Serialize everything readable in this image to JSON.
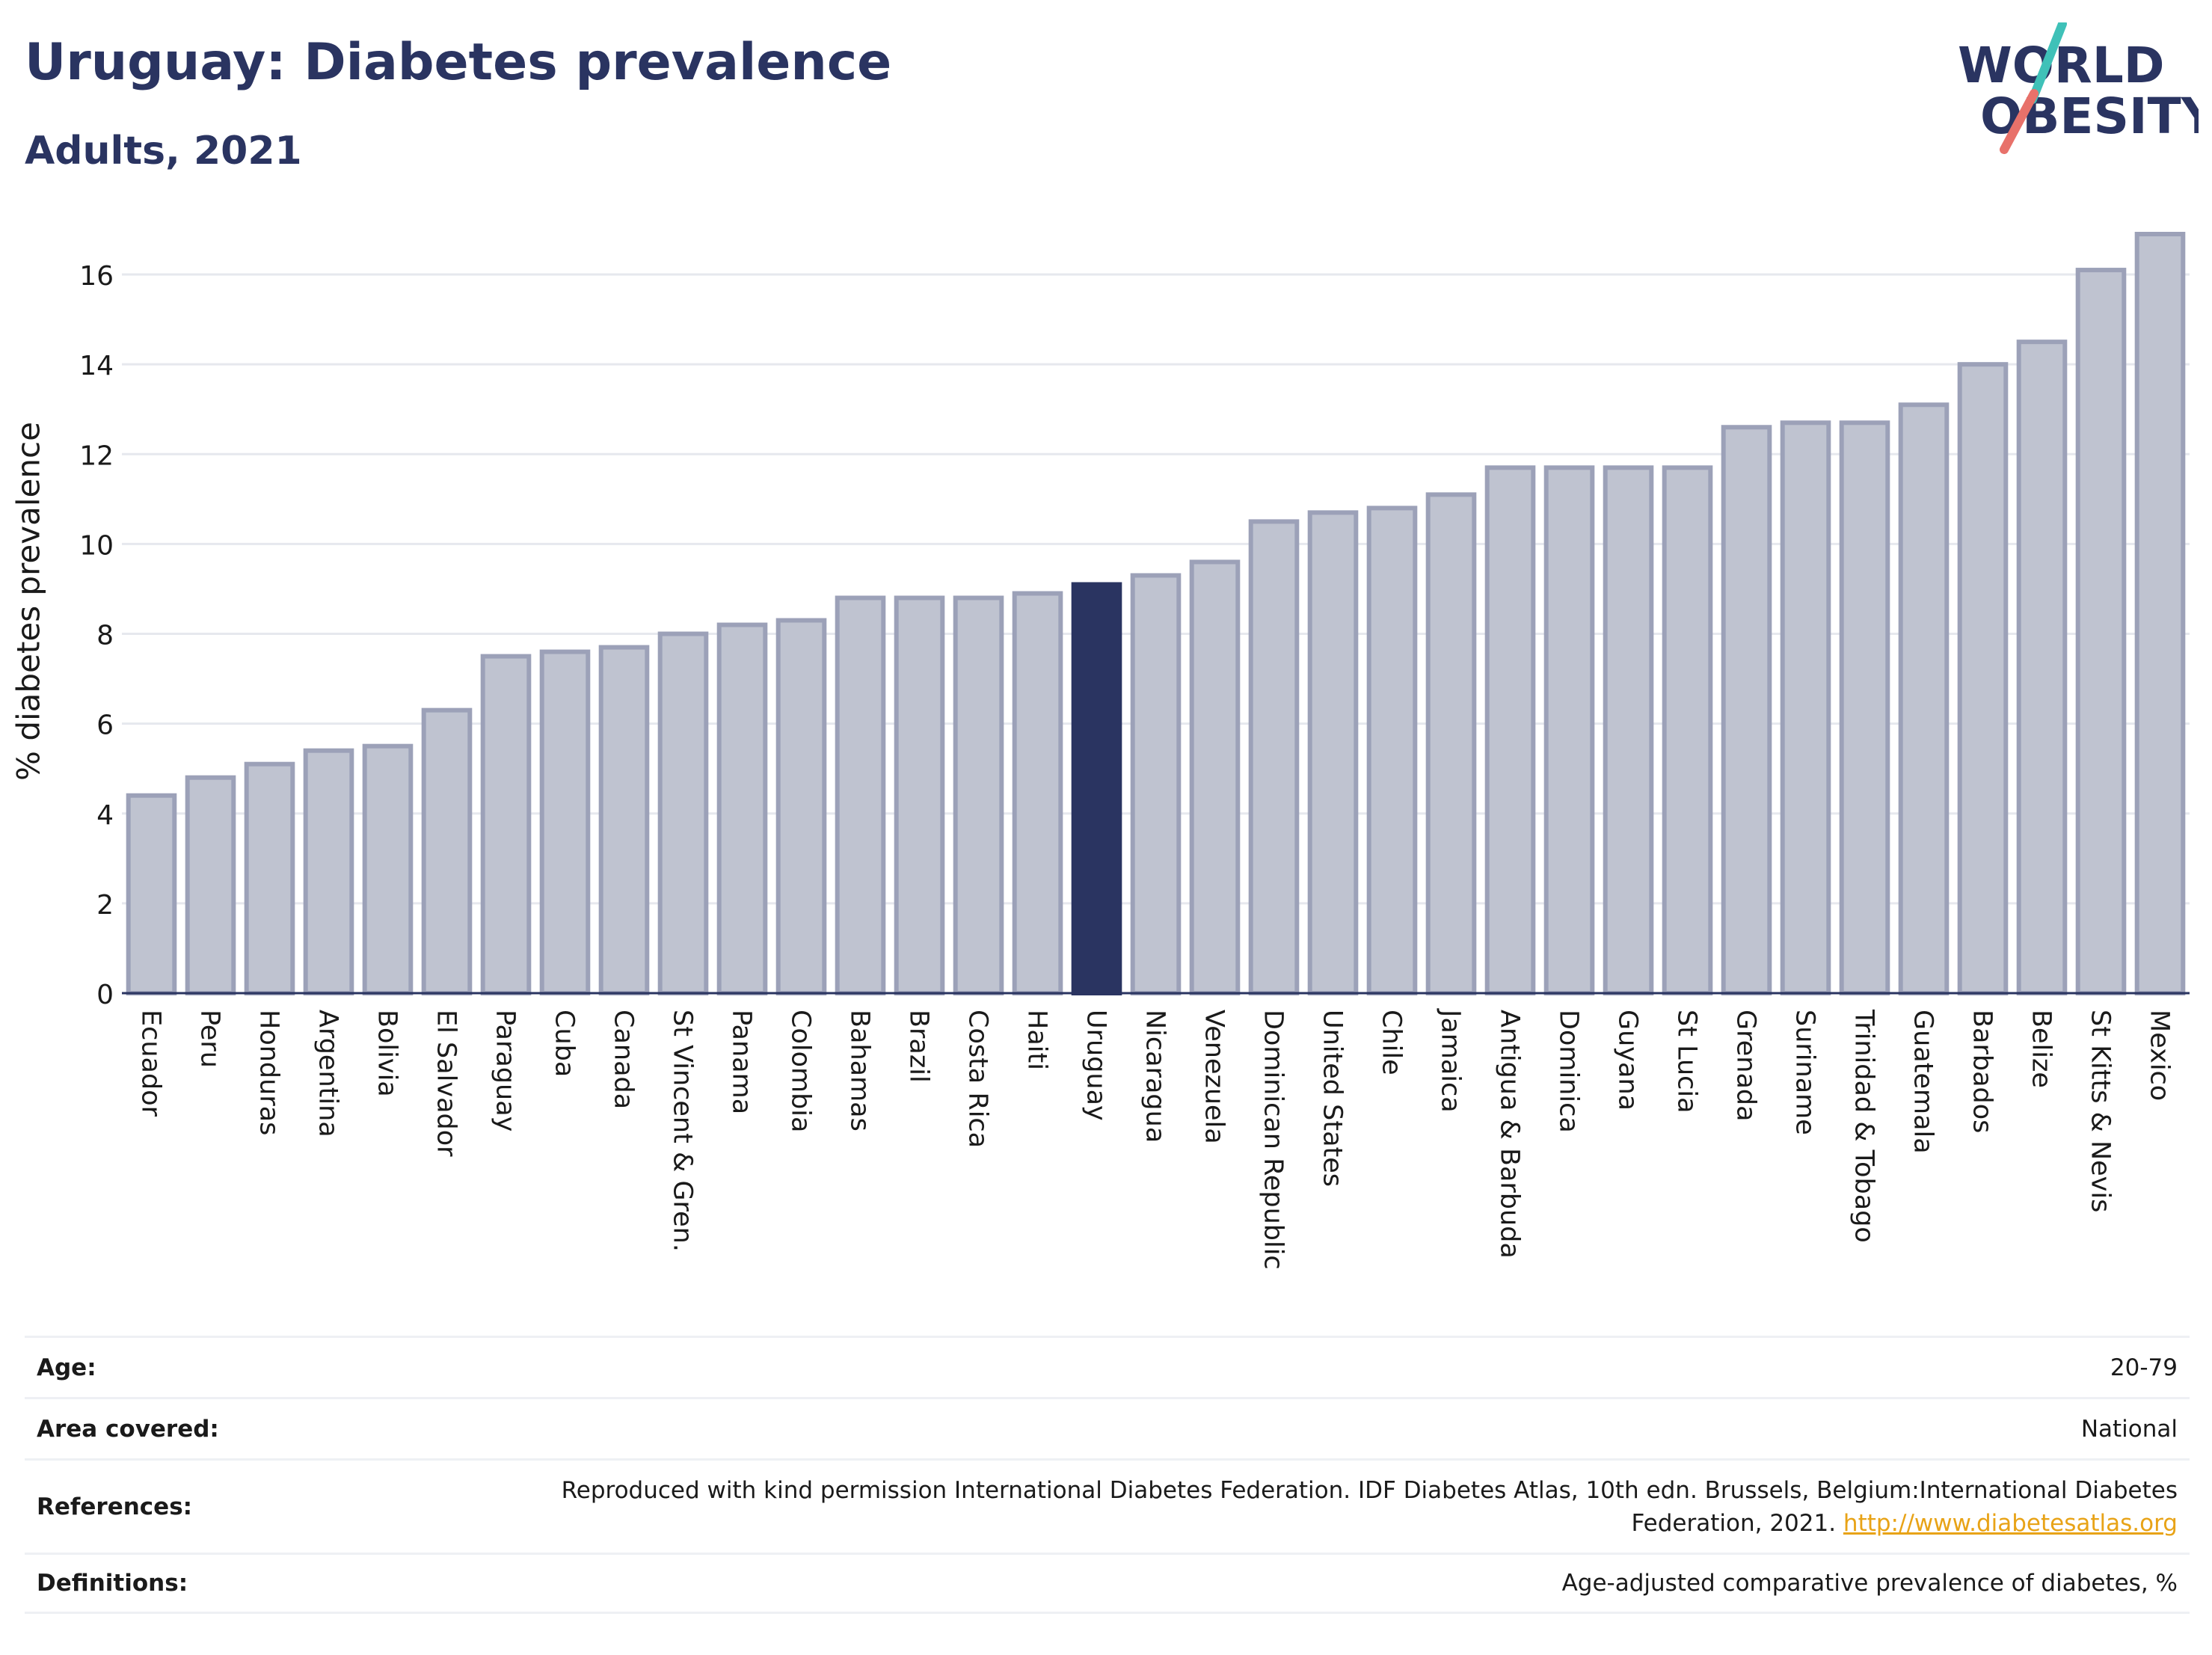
{
  "header": {
    "title": "Uruguay: Diabetes prevalence",
    "subtitle": "Adults, 2021"
  },
  "logo": {
    "line1": "WORLD",
    "line2": "OBESITY",
    "colors": {
      "text": "#2a3461",
      "slash_top": "#3fc1b8",
      "slash_bottom": "#e8716a"
    }
  },
  "chart_data": {
    "type": "bar",
    "ylabel": "% diabetes prevalence",
    "ylim": [
      0,
      17
    ],
    "yticks": [
      0,
      2,
      4,
      6,
      8,
      10,
      12,
      14,
      16
    ],
    "grid": true,
    "highlight": "Uruguay",
    "colors": {
      "bar": "#bfc3d0",
      "bar_border": "#9ca1b8",
      "highlight": "#2a3461"
    },
    "categories": [
      "Ecuador",
      "Peru",
      "Honduras",
      "Argentina",
      "Bolivia",
      "El Salvador",
      "Paraguay",
      "Cuba",
      "Canada",
      "St Vincent & Gren.",
      "Panama",
      "Colombia",
      "Bahamas",
      "Brazil",
      "Costa Rica",
      "Haiti",
      "Uruguay",
      "Nicaragua",
      "Venezuela",
      "Dominican Republic",
      "United States",
      "Chile",
      "Jamaica",
      "Antigua & Barbuda",
      "Dominica",
      "Guyana",
      "St Lucia",
      "Grenada",
      "Suriname",
      "Trinidad & Tobago",
      "Guatemala",
      "Barbados",
      "Belize",
      "St Kitts & Nevis",
      "Mexico"
    ],
    "values": [
      4.4,
      4.8,
      5.1,
      5.4,
      5.5,
      6.3,
      7.5,
      7.6,
      7.7,
      8.0,
      8.2,
      8.3,
      8.8,
      8.8,
      8.8,
      8.9,
      9.1,
      9.3,
      9.6,
      10.5,
      10.7,
      10.8,
      11.1,
      11.7,
      11.7,
      11.7,
      11.7,
      12.6,
      12.7,
      12.7,
      13.1,
      14.0,
      14.5,
      16.1,
      16.9
    ]
  },
  "meta": {
    "rows": [
      {
        "key": "Age:",
        "value": "20-79"
      },
      {
        "key": "Area covered:",
        "value": "National"
      },
      {
        "key": "References:",
        "value": "Reproduced with kind permission International Diabetes Federation.  IDF Diabetes Atlas, 10th edn. Brussels, Belgium:International Diabetes Federation, 2021. ",
        "link": "http://www.diabetesatlas.org"
      },
      {
        "key": "Definitions:",
        "value": "Age-adjusted comparative prevalence of diabetes, %"
      }
    ]
  }
}
